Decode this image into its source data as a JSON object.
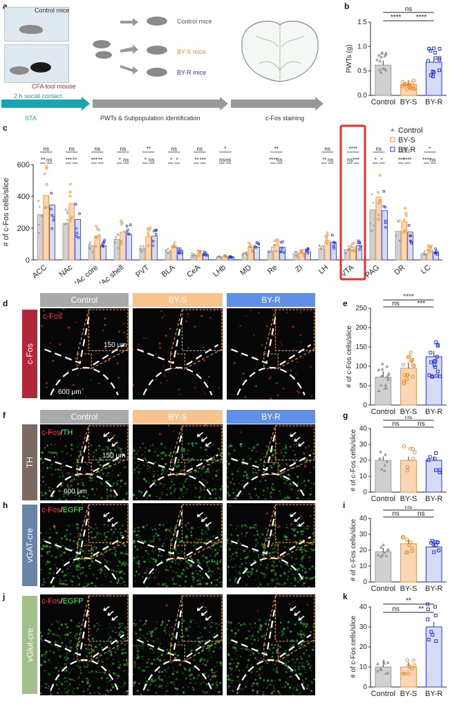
{
  "panel_labels": {
    "a": "a",
    "b": "b",
    "c": "c",
    "d": "d",
    "e": "e",
    "f": "f",
    "g": "g",
    "h": "h",
    "i": "i",
    "j": "j",
    "k": "k"
  },
  "panel_a": {
    "control_mice": "Control mice",
    "cfa_tool_mouse": "CFA tool mouse",
    "social_contact": "2 h social contact",
    "control_mice_right": "Control mice",
    "bys_mice": "BY-S mice",
    "byr_mice": "BY-R mice",
    "sta": "STA",
    "pwts": "PWTs & Subpopulation identification",
    "cfos_staining": "c-Fos staining"
  },
  "colors": {
    "control": "#9a9a9a",
    "bys": "#f08a2a",
    "byr": "#2233dd",
    "vta_box": "#e53030",
    "teal": "#1aa3b3"
  },
  "chart_data": [
    {
      "type": "bar",
      "panel": "b",
      "categories": [
        "Control",
        "BY-S",
        "BY-R"
      ],
      "values": [
        0.62,
        0.22,
        0.68
      ],
      "ylabel": "PWTs (g)",
      "ylim": [
        0,
        1.5
      ],
      "yticks": [
        "0.0",
        "0.5",
        "1.0",
        "1.5"
      ],
      "significance": [
        "****",
        "****",
        "ns"
      ]
    },
    {
      "type": "bar",
      "panel": "c",
      "ylabel": "# of c-Fos cells/slice",
      "ylim": [
        0,
        600
      ],
      "yticks": [
        "0",
        "200",
        "400",
        "600"
      ],
      "legend": [
        "Control",
        "BY-S",
        "BY-R"
      ],
      "categories": [
        "ACC",
        "NAc",
        "NAc core",
        "NAc shell",
        "PVT",
        "BLA",
        "CeA",
        "LHb",
        "MD",
        "Re",
        "ZI",
        "LH",
        "VTA",
        "PAG",
        "DR",
        "LC"
      ],
      "series": [
        {
          "name": "Control",
          "values": [
            285,
            230,
            90,
            130,
            75,
            50,
            30,
            18,
            40,
            55,
            40,
            70,
            65,
            315,
            180,
            40
          ]
        },
        {
          "name": "BY-S",
          "values": [
            405,
            355,
            150,
            175,
            145,
            80,
            40,
            20,
            80,
            95,
            45,
            120,
            80,
            395,
            240,
            65
          ]
        },
        {
          "name": "BY-R",
          "values": [
            345,
            255,
            90,
            160,
            150,
            60,
            35,
            20,
            80,
            80,
            50,
            110,
            90,
            310,
            175,
            50
          ]
        }
      ],
      "significance": [
        [
          "ns",
          "**",
          "ns"
        ],
        [
          "ns",
          "***",
          "**"
        ],
        [
          "ns",
          "***",
          "**"
        ],
        [
          "ns",
          "*",
          "ns"
        ],
        [
          "**",
          "*",
          "ns"
        ],
        [
          "ns",
          "*",
          "*"
        ],
        [
          "ns",
          "**",
          "***"
        ],
        [
          "*",
          "ns",
          "ns"
        ],
        [
          "",
          "",
          ""
        ],
        [
          "**",
          "****",
          "ns"
        ],
        [
          "",
          "",
          ""
        ],
        [
          "ns",
          "**",
          "ns"
        ],
        [
          "****",
          "ns",
          "***"
        ],
        [
          "ns",
          "*",
          "*"
        ],
        [
          "ns",
          "***",
          "****"
        ],
        [
          "*",
          "****",
          "ns"
        ]
      ]
    },
    {
      "type": "bar",
      "panel": "e",
      "categories": [
        "Control",
        "BY-S",
        "BY-R"
      ],
      "values": [
        72,
        95,
        125
      ],
      "ylabel": "# of c-Fos cells/slice",
      "ylim": [
        0,
        250
      ],
      "yticks": [
        "0",
        "50",
        "100",
        "150",
        "200",
        "250"
      ],
      "significance": [
        "ns",
        "***",
        "****"
      ]
    },
    {
      "type": "bar",
      "panel": "g",
      "categories": [
        "Control",
        "BY-S",
        "BY-R"
      ],
      "values": [
        20,
        20,
        20
      ],
      "ylabel": "# of c-Fos cells/slice",
      "ylim": [
        0,
        40
      ],
      "yticks": [
        "0",
        "10",
        "20",
        "30",
        "40"
      ],
      "significance": [
        "ns",
        "ns",
        "ns"
      ]
    },
    {
      "type": "bar",
      "panel": "i",
      "categories": [
        "Control",
        "BY-S",
        "BY-R"
      ],
      "values": [
        19,
        24,
        22
      ],
      "ylabel": "# of c-Fos cells/slice",
      "ylim": [
        0,
        40
      ],
      "yticks": [
        "0",
        "10",
        "20",
        "30",
        "40"
      ],
      "significance": [
        "ns",
        "ns",
        "ns"
      ]
    },
    {
      "type": "bar",
      "panel": "k",
      "categories": [
        "Control",
        "BY-S",
        "BY-R"
      ],
      "values": [
        10,
        10,
        30
      ],
      "ylabel": "# of c-Fos cells/slice",
      "ylim": [
        0,
        40
      ],
      "yticks": [
        "0",
        "10",
        "20",
        "30",
        "40"
      ],
      "significance": [
        "ns",
        "**",
        "**"
      ]
    }
  ],
  "micrographs": {
    "headers": [
      "Control",
      "BY-S",
      "BY-R"
    ],
    "d": {
      "tab": "c-Fos",
      "stain": "c-Fos",
      "scale_small": "150 μm",
      "scale_large": "600 μm"
    },
    "f": {
      "tab": "TH",
      "stain_red": "c-Fos",
      "stain_sep": "/",
      "stain_green": "TH",
      "scale_small": "150 μm",
      "scale_large": "600 μm"
    },
    "h": {
      "tab": "vGAT-cre",
      "stain_red": "c-Fos",
      "stain_sep": "/",
      "stain_green": "EGFP"
    },
    "j": {
      "tab": "vGlut-cre",
      "stain_red": "c-Fos",
      "stain_sep": "/",
      "stain_green": "EGFP"
    }
  }
}
